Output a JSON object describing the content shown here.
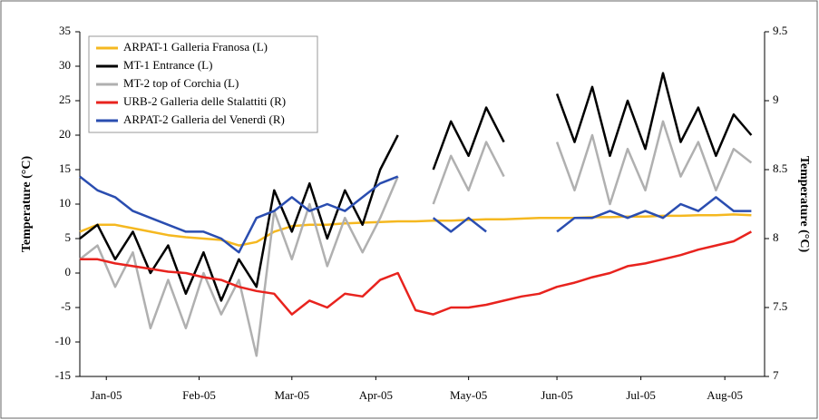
{
  "chart_data": {
    "type": "line",
    "y_label": "Temperature (°C)",
    "y2_label": "Temperature (°C)",
    "x": [
      0,
      0.2,
      0.4,
      0.6,
      0.8,
      1.0,
      1.2,
      1.4,
      1.6,
      1.8,
      2.0,
      2.2,
      2.4,
      2.6,
      2.8,
      3.0,
      3.2,
      3.4,
      3.6,
      3.8,
      4.0,
      4.2,
      4.4,
      4.6,
      4.8,
      5.0,
      5.2,
      5.4,
      5.6,
      5.8,
      6.0,
      6.2,
      6.4,
      6.6,
      6.8,
      7.0,
      7.2,
      7.4,
      7.6
    ],
    "xlim": [
      0,
      7.75
    ],
    "xticks": [
      {
        "value": 0.3,
        "label": "Jan-05"
      },
      {
        "value": 1.35,
        "label": "Feb-05"
      },
      {
        "value": 2.4,
        "label": "Mar-05"
      },
      {
        "value": 3.35,
        "label": "Apr-05"
      },
      {
        "value": 4.4,
        "label": "May-05"
      },
      {
        "value": 5.4,
        "label": "Jun-05"
      },
      {
        "value": 6.35,
        "label": "Jul-05"
      },
      {
        "value": 7.3,
        "label": "Aug-05"
      }
    ],
    "ylim": [
      -15,
      35
    ],
    "yticks": [
      -15,
      -10,
      -5,
      0,
      5,
      10,
      15,
      20,
      25,
      30,
      35
    ],
    "y2lim": [
      7,
      9.5
    ],
    "y2ticks": [
      7,
      7.5,
      8,
      8.5,
      9,
      9.5
    ],
    "legend": "upper left",
    "series": [
      {
        "name": "ARPAT-1 Galleria Franosa (L)",
        "color": "#f5b820",
        "values": [
          6,
          7,
          7,
          6.5,
          6,
          5.5,
          5.2,
          5,
          4.8,
          4,
          4.5,
          6,
          6.8,
          7,
          7,
          7.2,
          7.3,
          7.4,
          7.5,
          7.5,
          7.6,
          7.6,
          7.7,
          7.8,
          7.8,
          7.9,
          8,
          8,
          8,
          8.1,
          8.1,
          8.2,
          8.2,
          8.3,
          8.3,
          8.4,
          8.4,
          8.5,
          8.4
        ]
      },
      {
        "name": "MT-1 Entrance (L)",
        "color": "#000000",
        "values": [
          5,
          7,
          2,
          6,
          0,
          4,
          -3,
          3,
          -4,
          2,
          -2,
          12,
          6,
          13,
          5,
          12,
          7,
          15,
          20,
          null,
          15,
          22,
          17,
          24,
          19,
          null,
          null,
          26,
          19,
          27,
          17,
          25,
          18,
          29,
          19,
          24,
          17,
          23,
          20
        ]
      },
      {
        "name": "MT-2 top of Corchia (L)",
        "color": "#b0b0b0",
        "values": [
          2,
          4,
          -2,
          3,
          -8,
          -1,
          -8,
          0,
          -6,
          -1,
          -12,
          9,
          2,
          10,
          1,
          8,
          3,
          8,
          14,
          null,
          10,
          17,
          12,
          19,
          14,
          null,
          null,
          19,
          12,
          20,
          10,
          18,
          12,
          22,
          14,
          19,
          12,
          18,
          16
        ]
      },
      {
        "name": "URB-2 Galleria delle Stalattiti (R)",
        "color": "#e8231e",
        "axis": "y2",
        "values": [
          7.85,
          7.85,
          7.82,
          7.8,
          7.78,
          7.76,
          7.75,
          7.72,
          7.7,
          7.65,
          7.62,
          7.6,
          7.45,
          7.55,
          7.5,
          7.6,
          7.58,
          7.7,
          7.75,
          7.48,
          7.45,
          7.5,
          7.5,
          7.52,
          7.55,
          7.58,
          7.6,
          7.65,
          7.68,
          7.72,
          7.75,
          7.8,
          7.82,
          7.85,
          7.88,
          7.92,
          7.95,
          7.98,
          8.05
        ]
      },
      {
        "name": "ARPAT-2 Galleria del Venerdì (R)",
        "color": "#2a4db0",
        "axis": "y2",
        "values": [
          8.45,
          8.35,
          8.3,
          8.2,
          8.15,
          8.1,
          8.05,
          8.05,
          8.0,
          7.9,
          8.15,
          8.2,
          8.3,
          8.2,
          8.25,
          8.2,
          8.3,
          8.4,
          8.45,
          null,
          8.15,
          8.05,
          8.15,
          8.05,
          null,
          null,
          null,
          8.05,
          8.15,
          8.15,
          8.2,
          8.15,
          8.2,
          8.15,
          8.25,
          8.2,
          8.3,
          8.2,
          8.2
        ]
      }
    ]
  }
}
